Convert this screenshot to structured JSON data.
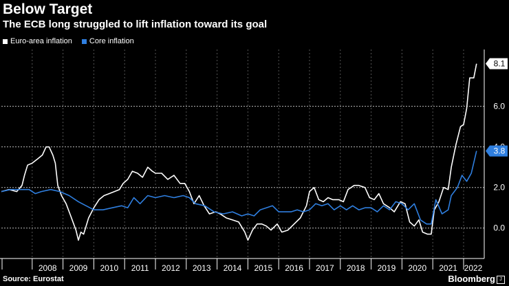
{
  "header": {
    "title": "Below Target",
    "subtitle": "The ECB long struggled to lift inflation toward its goal"
  },
  "footer": {
    "source": "Source: Eurostat",
    "brand": "Bloomberg",
    "brand_mark": "J"
  },
  "colors": {
    "headline": "#ffffff",
    "core": "#2f7fe0",
    "grid": "#bbbbbb"
  },
  "chart_data": {
    "type": "line",
    "title": "Below Target",
    "subtitle": "The ECB long struggled to lift inflation toward its goal",
    "xlabel": "",
    "ylabel": "",
    "x_start": "2007-01",
    "x_end": "2022-07",
    "ylim": [
      -1.5,
      8.8
    ],
    "yticks": [
      0,
      2,
      4,
      6
    ],
    "ytick_labels": [
      "0.0",
      "2.0",
      "4.0",
      "6.0"
    ],
    "xtick_labels": [
      "2008",
      "2009",
      "2010",
      "2011",
      "2012",
      "2013",
      "2014",
      "2015",
      "2016",
      "2017",
      "2018",
      "2019",
      "2020",
      "2021",
      "2022"
    ],
    "legend_position": "top-left",
    "series": [
      {
        "name": "Euro-area inflation",
        "color": "#ffffff",
        "end_label": "8.1",
        "values": [
          [
            2007.0,
            1.8
          ],
          [
            2007.25,
            1.9
          ],
          [
            2007.5,
            1.8
          ],
          [
            2007.67,
            2.1
          ],
          [
            2007.75,
            2.6
          ],
          [
            2007.85,
            3.1
          ],
          [
            2008.0,
            3.2
          ],
          [
            2008.17,
            3.4
          ],
          [
            2008.33,
            3.6
          ],
          [
            2008.45,
            4.0
          ],
          [
            2008.55,
            4.0
          ],
          [
            2008.67,
            3.6
          ],
          [
            2008.75,
            3.2
          ],
          [
            2008.83,
            2.1
          ],
          [
            2008.95,
            1.6
          ],
          [
            2009.1,
            1.2
          ],
          [
            2009.25,
            0.6
          ],
          [
            2009.42,
            -0.1
          ],
          [
            2009.5,
            -0.6
          ],
          [
            2009.58,
            -0.2
          ],
          [
            2009.67,
            -0.3
          ],
          [
            2009.83,
            0.5
          ],
          [
            2010.0,
            1.0
          ],
          [
            2010.17,
            1.4
          ],
          [
            2010.33,
            1.6
          ],
          [
            2010.5,
            1.7
          ],
          [
            2010.67,
            1.8
          ],
          [
            2010.83,
            1.9
          ],
          [
            2010.95,
            2.2
          ],
          [
            2011.1,
            2.4
          ],
          [
            2011.25,
            2.8
          ],
          [
            2011.42,
            2.7
          ],
          [
            2011.58,
            2.5
          ],
          [
            2011.75,
            3.0
          ],
          [
            2011.9,
            2.8
          ],
          [
            2012.0,
            2.7
          ],
          [
            2012.2,
            2.7
          ],
          [
            2012.4,
            2.4
          ],
          [
            2012.6,
            2.6
          ],
          [
            2012.8,
            2.2
          ],
          [
            2012.95,
            2.2
          ],
          [
            2013.1,
            1.8
          ],
          [
            2013.25,
            1.2
          ],
          [
            2013.42,
            1.6
          ],
          [
            2013.58,
            1.1
          ],
          [
            2013.75,
            0.7
          ],
          [
            2013.95,
            0.8
          ],
          [
            2014.1,
            0.7
          ],
          [
            2014.3,
            0.5
          ],
          [
            2014.5,
            0.4
          ],
          [
            2014.7,
            0.3
          ],
          [
            2014.9,
            -0.2
          ],
          [
            2015.0,
            -0.6
          ],
          [
            2015.15,
            -0.1
          ],
          [
            2015.3,
            0.2
          ],
          [
            2015.45,
            0.2
          ],
          [
            2015.6,
            0.1
          ],
          [
            2015.75,
            -0.1
          ],
          [
            2015.95,
            0.2
          ],
          [
            2016.1,
            -0.2
          ],
          [
            2016.3,
            -0.1
          ],
          [
            2016.5,
            0.2
          ],
          [
            2016.7,
            0.5
          ],
          [
            2016.9,
            1.1
          ],
          [
            2017.0,
            1.8
          ],
          [
            2017.15,
            2.0
          ],
          [
            2017.3,
            1.4
          ],
          [
            2017.45,
            1.3
          ],
          [
            2017.6,
            1.5
          ],
          [
            2017.75,
            1.4
          ],
          [
            2017.95,
            1.4
          ],
          [
            2018.1,
            1.3
          ],
          [
            2018.25,
            1.9
          ],
          [
            2018.45,
            2.1
          ],
          [
            2018.6,
            2.1
          ],
          [
            2018.8,
            2.0
          ],
          [
            2018.95,
            1.5
          ],
          [
            2019.1,
            1.4
          ],
          [
            2019.25,
            1.7
          ],
          [
            2019.4,
            1.2
          ],
          [
            2019.6,
            1.0
          ],
          [
            2019.75,
            0.8
          ],
          [
            2019.95,
            1.3
          ],
          [
            2020.1,
            1.2
          ],
          [
            2020.25,
            0.3
          ],
          [
            2020.4,
            0.1
          ],
          [
            2020.55,
            0.4
          ],
          [
            2020.67,
            -0.2
          ],
          [
            2020.83,
            -0.3
          ],
          [
            2020.95,
            -0.3
          ],
          [
            2021.05,
            0.9
          ],
          [
            2021.2,
            1.3
          ],
          [
            2021.35,
            2.0
          ],
          [
            2021.5,
            1.9
          ],
          [
            2021.6,
            3.0
          ],
          [
            2021.75,
            4.1
          ],
          [
            2021.9,
            5.0
          ],
          [
            2022.0,
            5.1
          ],
          [
            2022.1,
            5.9
          ],
          [
            2022.2,
            7.4
          ],
          [
            2022.33,
            7.4
          ],
          [
            2022.42,
            8.1
          ]
        ]
      },
      {
        "name": "Core inflation",
        "color": "#2f7fe0",
        "end_label": "3.8",
        "values": [
          [
            2007.0,
            1.8
          ],
          [
            2007.3,
            1.9
          ],
          [
            2007.6,
            1.9
          ],
          [
            2007.9,
            1.9
          ],
          [
            2008.1,
            1.7
          ],
          [
            2008.3,
            1.8
          ],
          [
            2008.6,
            1.9
          ],
          [
            2008.9,
            1.8
          ],
          [
            2009.2,
            1.6
          ],
          [
            2009.5,
            1.3
          ],
          [
            2009.75,
            1.1
          ],
          [
            2010.0,
            0.9
          ],
          [
            2010.3,
            0.9
          ],
          [
            2010.6,
            1.0
          ],
          [
            2010.9,
            1.1
          ],
          [
            2011.1,
            1.0
          ],
          [
            2011.3,
            1.5
          ],
          [
            2011.5,
            1.2
          ],
          [
            2011.75,
            1.6
          ],
          [
            2012.0,
            1.5
          ],
          [
            2012.3,
            1.6
          ],
          [
            2012.6,
            1.5
          ],
          [
            2012.9,
            1.6
          ],
          [
            2013.1,
            1.5
          ],
          [
            2013.3,
            1.2
          ],
          [
            2013.6,
            1.1
          ],
          [
            2013.9,
            0.8
          ],
          [
            2014.2,
            0.7
          ],
          [
            2014.5,
            0.8
          ],
          [
            2014.8,
            0.6
          ],
          [
            2015.0,
            0.7
          ],
          [
            2015.2,
            0.6
          ],
          [
            2015.4,
            0.9
          ],
          [
            2015.6,
            1.0
          ],
          [
            2015.8,
            1.1
          ],
          [
            2016.0,
            0.8
          ],
          [
            2016.2,
            0.8
          ],
          [
            2016.4,
            0.8
          ],
          [
            2016.6,
            0.9
          ],
          [
            2016.8,
            0.8
          ],
          [
            2017.0,
            0.9
          ],
          [
            2017.2,
            1.2
          ],
          [
            2017.4,
            1.1
          ],
          [
            2017.6,
            1.2
          ],
          [
            2017.8,
            0.9
          ],
          [
            2018.0,
            1.1
          ],
          [
            2018.2,
            0.9
          ],
          [
            2018.4,
            1.1
          ],
          [
            2018.6,
            0.9
          ],
          [
            2018.8,
            1.0
          ],
          [
            2019.0,
            1.0
          ],
          [
            2019.2,
            0.8
          ],
          [
            2019.4,
            1.1
          ],
          [
            2019.6,
            0.9
          ],
          [
            2019.8,
            1.3
          ],
          [
            2020.0,
            1.2
          ],
          [
            2020.2,
            0.9
          ],
          [
            2020.4,
            1.2
          ],
          [
            2020.6,
            0.4
          ],
          [
            2020.8,
            0.2
          ],
          [
            2020.95,
            0.2
          ],
          [
            2021.1,
            1.4
          ],
          [
            2021.3,
            0.7
          ],
          [
            2021.5,
            0.9
          ],
          [
            2021.6,
            1.6
          ],
          [
            2021.8,
            2.0
          ],
          [
            2021.95,
            2.6
          ],
          [
            2022.1,
            2.3
          ],
          [
            2022.25,
            2.7
          ],
          [
            2022.42,
            3.8
          ]
        ]
      }
    ]
  }
}
